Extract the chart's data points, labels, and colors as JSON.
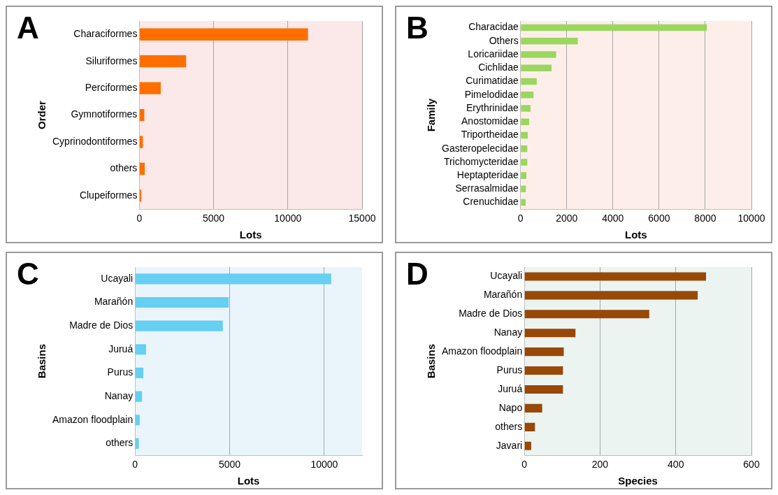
{
  "chart_data": [
    {
      "type": "bar",
      "title": "A",
      "orientation": "horizontal",
      "xlabel": "Lots",
      "ylabel": "Order",
      "categories": [
        "Characiformes",
        "Siluriformes",
        "Perciformes",
        "Gymnotiformes",
        "Cyprinodontiformes",
        "others",
        "Clupeiformes"
      ],
      "values": [
        11360,
        3150,
        1440,
        330,
        240,
        360,
        130
      ],
      "color": "#ff6f00",
      "xlim": [
        0,
        15000
      ],
      "xticks": [
        0,
        5000,
        10000,
        15000
      ],
      "grid": "x"
    },
    {
      "type": "bar",
      "title": "B",
      "orientation": "horizontal",
      "xlabel": "Lots",
      "ylabel": "Family",
      "categories": [
        "Characidae",
        "Others",
        "Loricariidae",
        "Cichlidae",
        "Curimatidae",
        "Pimelodidae",
        "Erythrinidae",
        "Anostomidae",
        "Triportheidae",
        "Gasteropelecidae",
        "Trichomycteridae",
        "Heptapteridae",
        "Serrasalmidae",
        "Crenuchidae"
      ],
      "values": [
        8070,
        2480,
        1540,
        1340,
        700,
        560,
        430,
        370,
        310,
        290,
        290,
        250,
        230,
        220
      ],
      "color": "#9bd65e",
      "xlim": [
        0,
        10000
      ],
      "xticks": [
        0,
        2000,
        4000,
        6000,
        8000,
        10000
      ],
      "grid": "x"
    },
    {
      "type": "bar",
      "title": "C",
      "orientation": "horizontal",
      "xlabel": "Lots",
      "ylabel": "Basins",
      "categories": [
        "Ucayali",
        "Marañón",
        "Madre de Dios",
        "Juruá",
        "Purus",
        "Nanay",
        "Amazon floodplain",
        "others"
      ],
      "values": [
        10370,
        4950,
        4640,
        580,
        440,
        370,
        250,
        200
      ],
      "color": "#66cff2",
      "xlim": [
        0,
        12000
      ],
      "xticks": [
        0,
        5000,
        10000
      ],
      "grid": "x"
    },
    {
      "type": "bar",
      "title": "D",
      "orientation": "horizontal",
      "xlabel": "Species",
      "ylabel": "Basins",
      "categories": [
        "Ucayali",
        "Marañón",
        "Madre de Dios",
        "Nanay",
        "Amazon floodplain",
        "Purus",
        "Juruá",
        "Napo",
        "others",
        "Javari"
      ],
      "values": [
        480,
        458,
        330,
        135,
        104,
        102,
        102,
        47,
        28,
        18
      ],
      "color": "#984807",
      "xlim": [
        0,
        600
      ],
      "xticks": [
        0,
        200,
        400,
        600
      ],
      "grid": "x"
    }
  ]
}
